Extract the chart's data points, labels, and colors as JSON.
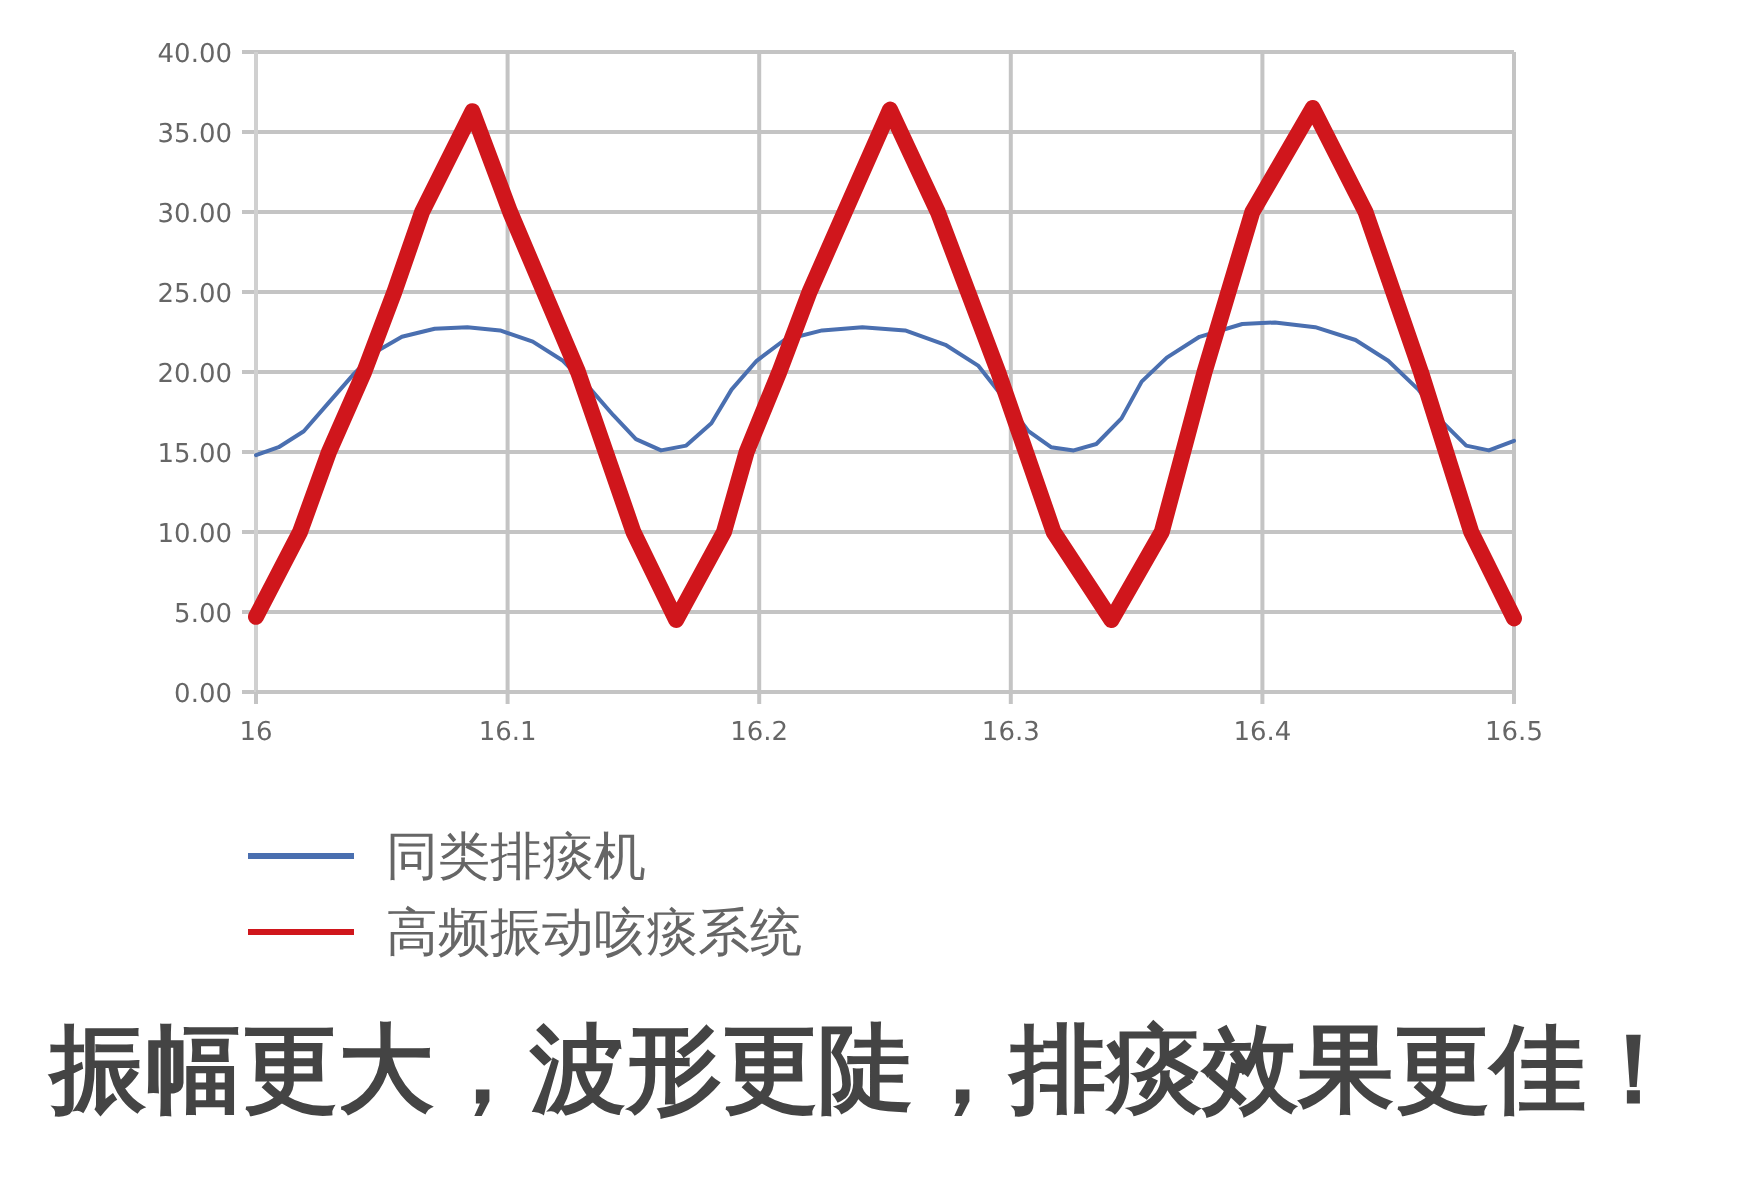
{
  "chart_data": {
    "type": "line",
    "xlim": [
      16,
      16.5
    ],
    "xticks": [
      16,
      16.1,
      16.2,
      16.3,
      16.4,
      16.5
    ],
    "ylim": [
      0,
      40
    ],
    "yticks": [
      {
        "value": 0,
        "label": "0.00"
      },
      {
        "value": 5,
        "label": "5.00"
      },
      {
        "value": 10,
        "label": "10.00"
      },
      {
        "value": 15,
        "label": "15.00"
      },
      {
        "value": 20,
        "label": "20.00"
      },
      {
        "value": 25,
        "label": "25.00"
      },
      {
        "value": 30,
        "label": "30.00"
      },
      {
        "value": 35,
        "label": "35.00"
      },
      {
        "value": 40,
        "label": "40.00"
      }
    ],
    "grid": true,
    "legend": "bottom",
    "line_style": "solid",
    "series": [
      {
        "name": "同类排痰机",
        "color": "#4a6fb0",
        "x": [
          16.0,
          16.009,
          16.019,
          16.029,
          16.039,
          16.048,
          16.058,
          16.071,
          16.084,
          16.097,
          16.11,
          16.122,
          16.132,
          16.142,
          16.151,
          16.161,
          16.171,
          16.181,
          16.189,
          16.199,
          16.21,
          16.225,
          16.241,
          16.258,
          16.274,
          16.287,
          16.297,
          16.307,
          16.316,
          16.325,
          16.334,
          16.344,
          16.352,
          16.362,
          16.375,
          16.392,
          16.405,
          16.421,
          16.437,
          16.45,
          16.462,
          16.472,
          16.481,
          16.49,
          16.5
        ],
        "values": [
          14.8,
          15.3,
          16.3,
          18.1,
          19.9,
          21.3,
          22.2,
          22.7,
          22.8,
          22.6,
          21.9,
          20.7,
          19.1,
          17.3,
          15.8,
          15.1,
          15.4,
          16.8,
          18.9,
          20.7,
          22.0,
          22.6,
          22.8,
          22.6,
          21.7,
          20.4,
          18.4,
          16.3,
          15.3,
          15.1,
          15.5,
          17.1,
          19.4,
          20.9,
          22.2,
          23.0,
          23.1,
          22.8,
          22.0,
          20.7,
          18.9,
          16.8,
          15.4,
          15.1,
          15.7
        ]
      },
      {
        "name": "高频振动咳痰系统",
        "color": "#d0161c",
        "x": [
          16.0,
          16.0175,
          16.029,
          16.043,
          16.055,
          16.066,
          16.086,
          16.101,
          16.128,
          16.15,
          16.167,
          16.186,
          16.195,
          16.208,
          16.22,
          16.234,
          16.252,
          16.271,
          16.295,
          16.317,
          16.34,
          16.36,
          16.377,
          16.396,
          16.42,
          16.441,
          16.463,
          16.483,
          16.5
        ],
        "values": [
          4.7,
          10,
          15,
          20,
          25,
          30,
          36.3,
          30,
          20,
          10,
          4.5,
          10,
          15,
          20,
          25,
          30,
          36.4,
          30,
          20,
          10,
          4.5,
          10,
          20,
          30,
          36.5,
          30,
          20,
          10,
          4.6
        ]
      }
    ],
    "annotations": [
      "振幅更大，波形更陡，排痰效果更佳！"
    ]
  }
}
